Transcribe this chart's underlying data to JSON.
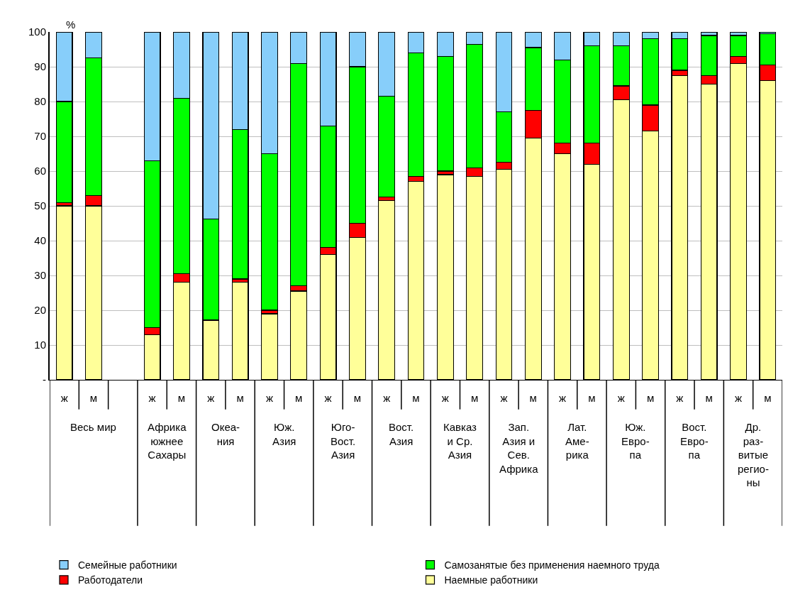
{
  "chart_data": {
    "type": "bar",
    "stacked": true,
    "ylabel": "%",
    "categories": [
      "ж",
      "м",
      null,
      "ж",
      "м",
      "ж",
      "м",
      "ж",
      "м",
      "ж",
      "м",
      "ж",
      "м",
      "ж",
      "м",
      "ж",
      "м",
      "ж",
      "м",
      "ж",
      "м",
      "ж",
      "м",
      "ж",
      "м"
    ],
    "series": [
      {
        "name": "Наемные работники",
        "color": "#ffff99",
        "values": [
          50,
          50,
          null,
          13,
          28,
          17,
          28,
          19,
          25.5,
          36,
          41,
          51.5,
          57,
          59,
          58.5,
          60.5,
          69.5,
          65,
          62,
          80.5,
          71.5,
          87.5,
          85,
          91,
          86
        ]
      },
      {
        "name": "Работодатели",
        "color": "#ff0000",
        "values": [
          1,
          3,
          null,
          2,
          2.5,
          0.3,
          1,
          1,
          1.5,
          2,
          4,
          1,
          1.5,
          1,
          2.5,
          2,
          8,
          3,
          6,
          4,
          7.5,
          1.5,
          2.5,
          2,
          4.5
        ]
      },
      {
        "name": "Самозанятые без применения наемного труда",
        "color": "#00ff00",
        "values": [
          29,
          39.5,
          null,
          48,
          50.5,
          29,
          43,
          45,
          64,
          35,
          45,
          29,
          35.5,
          33,
          35.5,
          14.5,
          18,
          24,
          28,
          11.5,
          19,
          9,
          11.5,
          6,
          9
        ]
      },
      {
        "name": "Семейные работники",
        "color": "#87cefa",
        "values": [
          20,
          7.5,
          null,
          37,
          19,
          53.7,
          28,
          35,
          9,
          27,
          10,
          18.5,
          6,
          7,
          3.5,
          23,
          4.5,
          8,
          4,
          4,
          2,
          2,
          1,
          1,
          0.5
        ]
      }
    ],
    "annotations": [
      "Весь мир",
      "Африка\nюжнее\nСахары",
      "Океа-\nния",
      "Юж.\nАзия",
      "Юго-\nВост.\nАзия",
      "Вост.\nАзия",
      "Кавказ\nи Ср.\nАзия",
      "Зап.\nАзия и\nСев.\nАфрика",
      "Лат.\nАме-\nрика",
      "Юж.\nЕвро-\nпа",
      "Вост.\nЕвро-\nпа",
      "Др.\nраз-\nвитые\nрегио-\nны"
    ],
    "ylim": [
      0,
      100
    ],
    "yticks": [
      {
        "value": 0,
        "label": "-"
      },
      10,
      20,
      30,
      40,
      50,
      60,
      70,
      80,
      90,
      100
    ],
    "grid": "y",
    "legend": "bottom"
  }
}
